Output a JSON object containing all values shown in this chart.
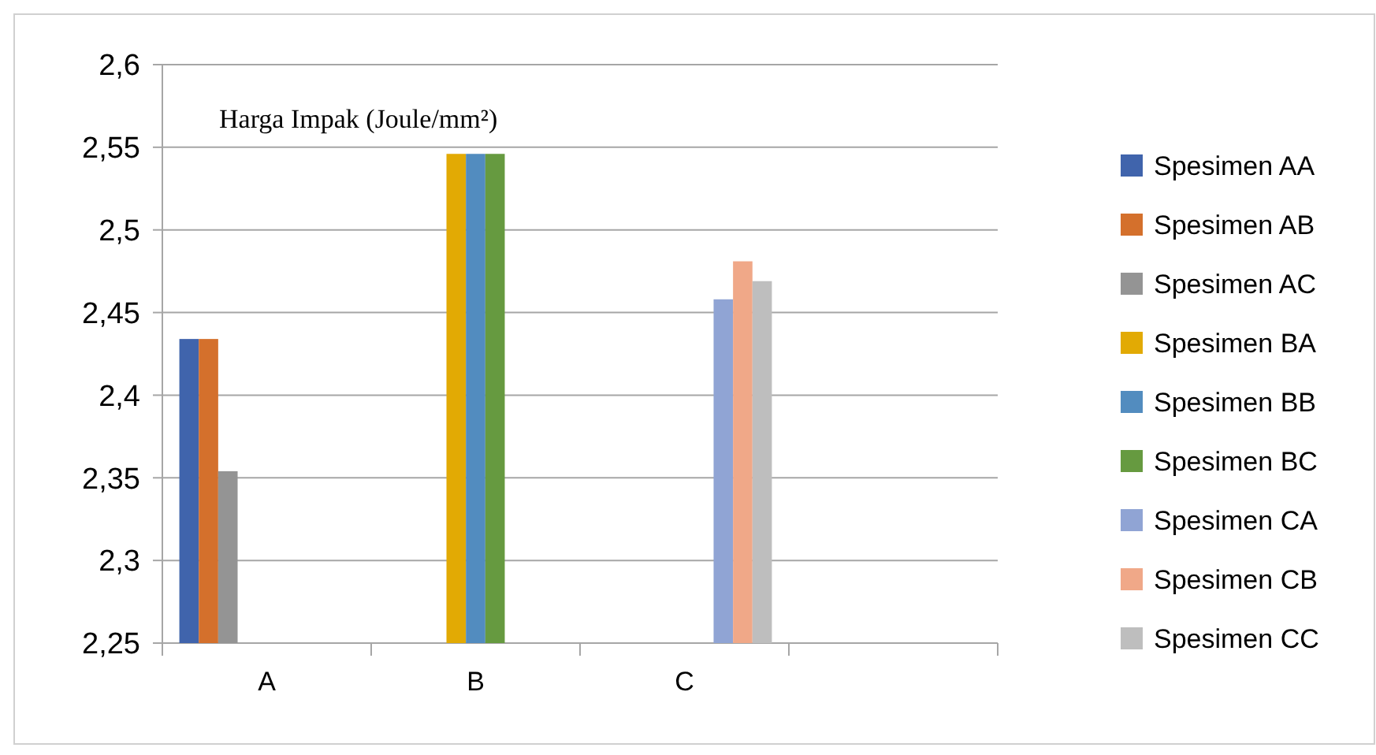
{
  "chart_data": {
    "type": "bar",
    "title": "Harga Impak (Joule/mm²)",
    "categories": [
      "A",
      "B",
      "C",
      null
    ],
    "series": [
      {
        "name": "Spesimen AA",
        "color": "#4064ac",
        "values": [
          2.434,
          null,
          null,
          null
        ]
      },
      {
        "name": "Spesimen AB",
        "color": "#d4702c",
        "values": [
          2.434,
          null,
          null,
          null
        ]
      },
      {
        "name": "Spesimen AC",
        "color": "#949494",
        "values": [
          2.354,
          null,
          null,
          null
        ]
      },
      {
        "name": "Spesimen BA",
        "color": "#e2aa04",
        "values": [
          null,
          2.546,
          null,
          null
        ]
      },
      {
        "name": "Spesimen BB",
        "color": "#528cbf",
        "values": [
          null,
          2.546,
          null,
          null
        ]
      },
      {
        "name": "Spesimen BC",
        "color": "#669a40",
        "values": [
          null,
          2.546,
          null,
          null
        ]
      },
      {
        "name": "Spesimen CA",
        "color": "#90a4d4",
        "values": [
          null,
          null,
          2.458,
          null
        ]
      },
      {
        "name": "Spesimen CB",
        "color": "#f0a888",
        "values": [
          null,
          null,
          2.481,
          null
        ]
      },
      {
        "name": "Spesimen CC",
        "color": "#bebebe",
        "values": [
          null,
          null,
          2.469,
          null
        ]
      }
    ],
    "ylim": [
      2.25,
      2.6
    ],
    "yticks": [
      {
        "value": 2.25,
        "label": "2,25"
      },
      {
        "value": 2.3,
        "label": "2,3"
      },
      {
        "value": 2.35,
        "label": "2,35"
      },
      {
        "value": 2.4,
        "label": "2,4"
      },
      {
        "value": 2.45,
        "label": "2,45"
      },
      {
        "value": 2.5,
        "label": "2,5"
      },
      {
        "value": 2.55,
        "label": "2,55"
      },
      {
        "value": 2.6,
        "label": "2,6"
      }
    ],
    "grid": "y",
    "legend": "right"
  }
}
